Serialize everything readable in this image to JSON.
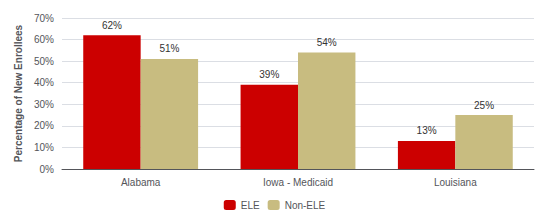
{
  "chart_data": {
    "type": "bar",
    "categories": [
      "Alabama",
      "Iowa - Medicaid",
      "Louisiana"
    ],
    "series": [
      {
        "name": "ELE",
        "color": "#cc0000",
        "values": [
          62,
          39,
          13
        ],
        "value_labels": [
          "62%",
          "39%",
          "13%"
        ]
      },
      {
        "name": "Non-ELE",
        "color": "#c8bc80",
        "values": [
          51,
          54,
          25
        ],
        "value_labels": [
          "51%",
          "54%",
          "25%"
        ]
      }
    ],
    "ylabel": "Percentage of New Enrollees",
    "ylim": [
      0,
      70
    ],
    "yticks": [
      {
        "value": 0,
        "label": "0%"
      },
      {
        "value": 10,
        "label": "10%"
      },
      {
        "value": 20,
        "label": "20%"
      },
      {
        "value": 30,
        "label": "30%"
      },
      {
        "value": 40,
        "label": "40%"
      },
      {
        "value": 50,
        "label": "50%"
      },
      {
        "value": 60,
        "label": "60%"
      },
      {
        "value": 70,
        "label": "70%"
      }
    ],
    "grid": true,
    "data_labels": true,
    "legend": "bottom"
  }
}
